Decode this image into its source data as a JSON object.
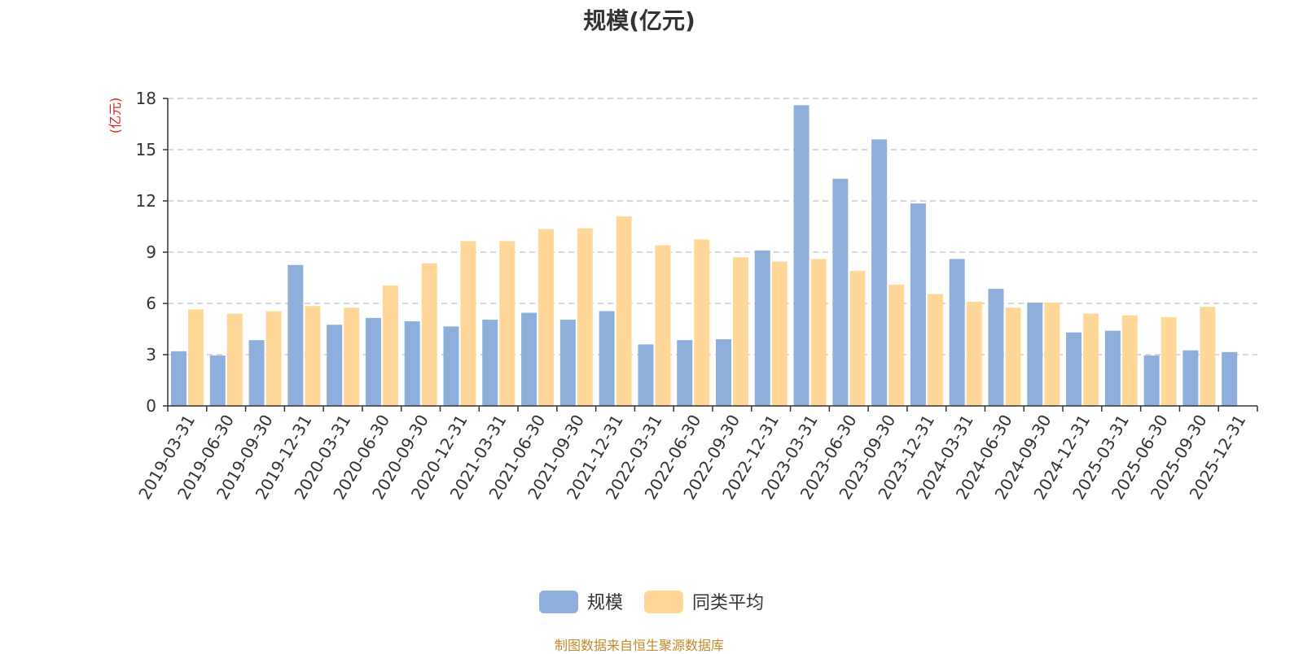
{
  "chart_data": {
    "type": "bar",
    "title": "规模(亿元)",
    "ylabel": "(亿元)",
    "xlabel": "",
    "ylim": [
      0,
      18
    ],
    "yticks": [
      0,
      3,
      6,
      9,
      12,
      15,
      18
    ],
    "grid": true,
    "legend_position": "bottom-center",
    "categories": [
      "2019-03-31",
      "2019-06-30",
      "2019-09-30",
      "2019-12-31",
      "2020-03-31",
      "2020-06-30",
      "2020-09-30",
      "2020-12-31",
      "2021-03-31",
      "2021-06-30",
      "2021-09-30",
      "2021-12-31",
      "2022-03-31",
      "2022-06-30",
      "2022-09-30",
      "2022-12-31",
      "2023-03-31",
      "2023-06-30",
      "2023-09-30",
      "2023-12-31",
      "2024-03-31",
      "2024-06-30",
      "2024-09-30",
      "2024-12-31",
      "2025-03-31",
      "2025-06-30",
      "2025-09-30",
      "2025-12-31"
    ],
    "series": [
      {
        "name": "规模",
        "color": "#8eaedb",
        "values": [
          3.2,
          2.95,
          3.85,
          8.25,
          4.75,
          5.15,
          4.95,
          4.65,
          5.05,
          5.45,
          5.05,
          5.55,
          3.6,
          3.85,
          3.9,
          9.1,
          17.6,
          13.3,
          15.6,
          11.85,
          8.6,
          6.85,
          6.05,
          4.3,
          4.4,
          2.95,
          3.25,
          3.15
        ]
      },
      {
        "name": "同类平均",
        "color": "#ffd899",
        "values": [
          5.65,
          5.4,
          5.55,
          5.85,
          5.75,
          7.05,
          8.35,
          9.65,
          9.65,
          10.35,
          10.4,
          11.1,
          9.4,
          9.75,
          8.7,
          8.45,
          8.6,
          7.9,
          7.1,
          6.55,
          6.1,
          5.75,
          6.05,
          5.4,
          5.3,
          5.2,
          5.8,
          null
        ]
      }
    ]
  },
  "footer": "制图数据来自恒生聚源数据库"
}
